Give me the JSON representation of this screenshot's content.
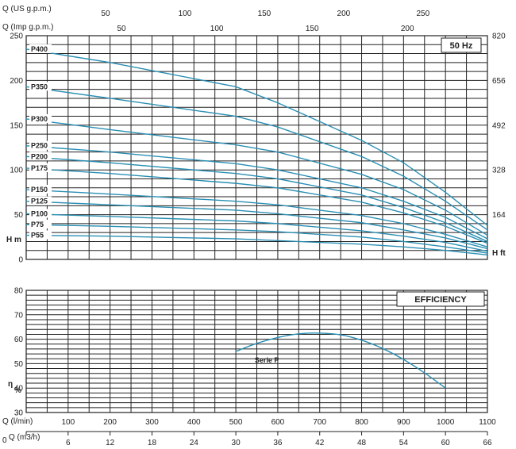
{
  "colors": {
    "curve": "#2a8fb3",
    "grid": "#222222"
  },
  "chart_data": [
    {
      "type": "line",
      "box_label": "50 Hz",
      "x_flow_lmin": {
        "min": 0,
        "max": 1100
      },
      "x_top_us": {
        "label": "Q (US g.p.m.)",
        "ticks": [
          "50",
          "100",
          "150",
          "200",
          "250"
        ],
        "values": [
          50,
          100,
          150,
          200,
          250
        ]
      },
      "x_top_imp": {
        "label": "Q (Imp g.p.m.)",
        "ticks": [
          "50",
          "100",
          "150",
          "200"
        ],
        "values": [
          50,
          100,
          150,
          200
        ]
      },
      "ylabel_left": "H m",
      "ylabel_right": "H ft",
      "ylim": [
        0,
        250
      ],
      "y_ticks_left": [
        "0",
        "50",
        "100",
        "150",
        "200",
        "250"
      ],
      "y_ticks_right": [
        "164",
        "328",
        "492",
        "656",
        "820"
      ],
      "y_right_values": [
        164,
        328,
        492,
        656,
        820
      ],
      "grid": true,
      "series": [
        {
          "name": "P400",
          "x": [
            0,
            200,
            500,
            600,
            800,
            900,
            1000,
            1100
          ],
          "y": [
            235,
            220,
            193,
            175,
            133,
            108,
            75,
            38
          ]
        },
        {
          "name": "P350",
          "x": [
            0,
            200,
            500,
            600,
            800,
            900,
            1000,
            1100
          ],
          "y": [
            193,
            180,
            160,
            148,
            115,
            93,
            65,
            33
          ]
        },
        {
          "name": "P300",
          "x": [
            0,
            200,
            500,
            600,
            800,
            900,
            1000,
            1100
          ],
          "y": [
            157,
            145,
            128,
            120,
            95,
            78,
            55,
            27
          ]
        },
        {
          "name": "P250",
          "x": [
            0,
            200,
            500,
            600,
            800,
            900,
            1000,
            1100
          ],
          "y": [
            127,
            120,
            107,
            100,
            80,
            65,
            47,
            23
          ]
        },
        {
          "name": "P200",
          "x": [
            0,
            200,
            500,
            600,
            800,
            900,
            1000,
            1100
          ],
          "y": [
            115,
            108,
            96,
            90,
            72,
            58,
            41,
            20
          ]
        },
        {
          "name": "P175",
          "x": [
            0,
            200,
            500,
            600,
            800,
            900,
            1000,
            1100
          ],
          "y": [
            102,
            96,
            85,
            80,
            64,
            52,
            37,
            18
          ]
        },
        {
          "name": "P150",
          "x": [
            0,
            200,
            500,
            600,
            800,
            900,
            1000,
            1100
          ],
          "y": [
            78,
            73,
            65,
            61,
            49,
            40,
            28,
            14
          ]
        },
        {
          "name": "P125",
          "x": [
            0,
            200,
            500,
            600,
            800,
            900,
            1000,
            1100
          ],
          "y": [
            65,
            61,
            55,
            51,
            41,
            33,
            24,
            12
          ]
        },
        {
          "name": "P100",
          "x": [
            0,
            200,
            500,
            600,
            800,
            900,
            1000,
            1100
          ],
          "y": [
            51,
            48,
            43,
            40,
            32,
            26,
            19,
            9
          ]
        },
        {
          "name": "P75",
          "x": [
            0,
            200,
            500,
            600,
            800,
            900,
            1000,
            1100
          ],
          "y": [
            39,
            37,
            33,
            31,
            25,
            20,
            14,
            7
          ]
        },
        {
          "name": "P55",
          "x": [
            0,
            200,
            500,
            600,
            800,
            900,
            1000,
            1100
          ],
          "y": [
            27,
            26,
            23,
            21,
            17,
            14,
            10,
            5
          ]
        }
      ]
    },
    {
      "type": "line",
      "box_label": "EFFICIENCY",
      "xlabel": "Q (l/min)",
      "xlabel2": "Q (m3/h)",
      "xlim": [
        0,
        1100
      ],
      "x_ticks": [
        "100",
        "200",
        "300",
        "400",
        "500",
        "600",
        "700",
        "800",
        "900",
        "1000",
        "1100"
      ],
      "x_tick_values": [
        100,
        200,
        300,
        400,
        500,
        600,
        700,
        800,
        900,
        1000,
        1100
      ],
      "x2_ticks": [
        "0",
        "6",
        "12",
        "18",
        "24",
        "30",
        "36",
        "42",
        "48",
        "54",
        "60",
        "66"
      ],
      "x2_tick_values": [
        0,
        6,
        12,
        18,
        24,
        30,
        36,
        42,
        48,
        54,
        60,
        66
      ],
      "ylabel": "η %",
      "ylim": [
        30,
        80
      ],
      "y_ticks": [
        "30",
        "40",
        "50",
        "60",
        "70",
        "80"
      ],
      "grid": true,
      "series": [
        {
          "name": "Serie P",
          "x": [
            500,
            550,
            600,
            650,
            700,
            750,
            800,
            850,
            900,
            950,
            1000
          ],
          "y": [
            55,
            58.3,
            60.7,
            62.2,
            62.5,
            61.8,
            59.6,
            56.2,
            51.7,
            46.2,
            40
          ]
        }
      ]
    }
  ]
}
